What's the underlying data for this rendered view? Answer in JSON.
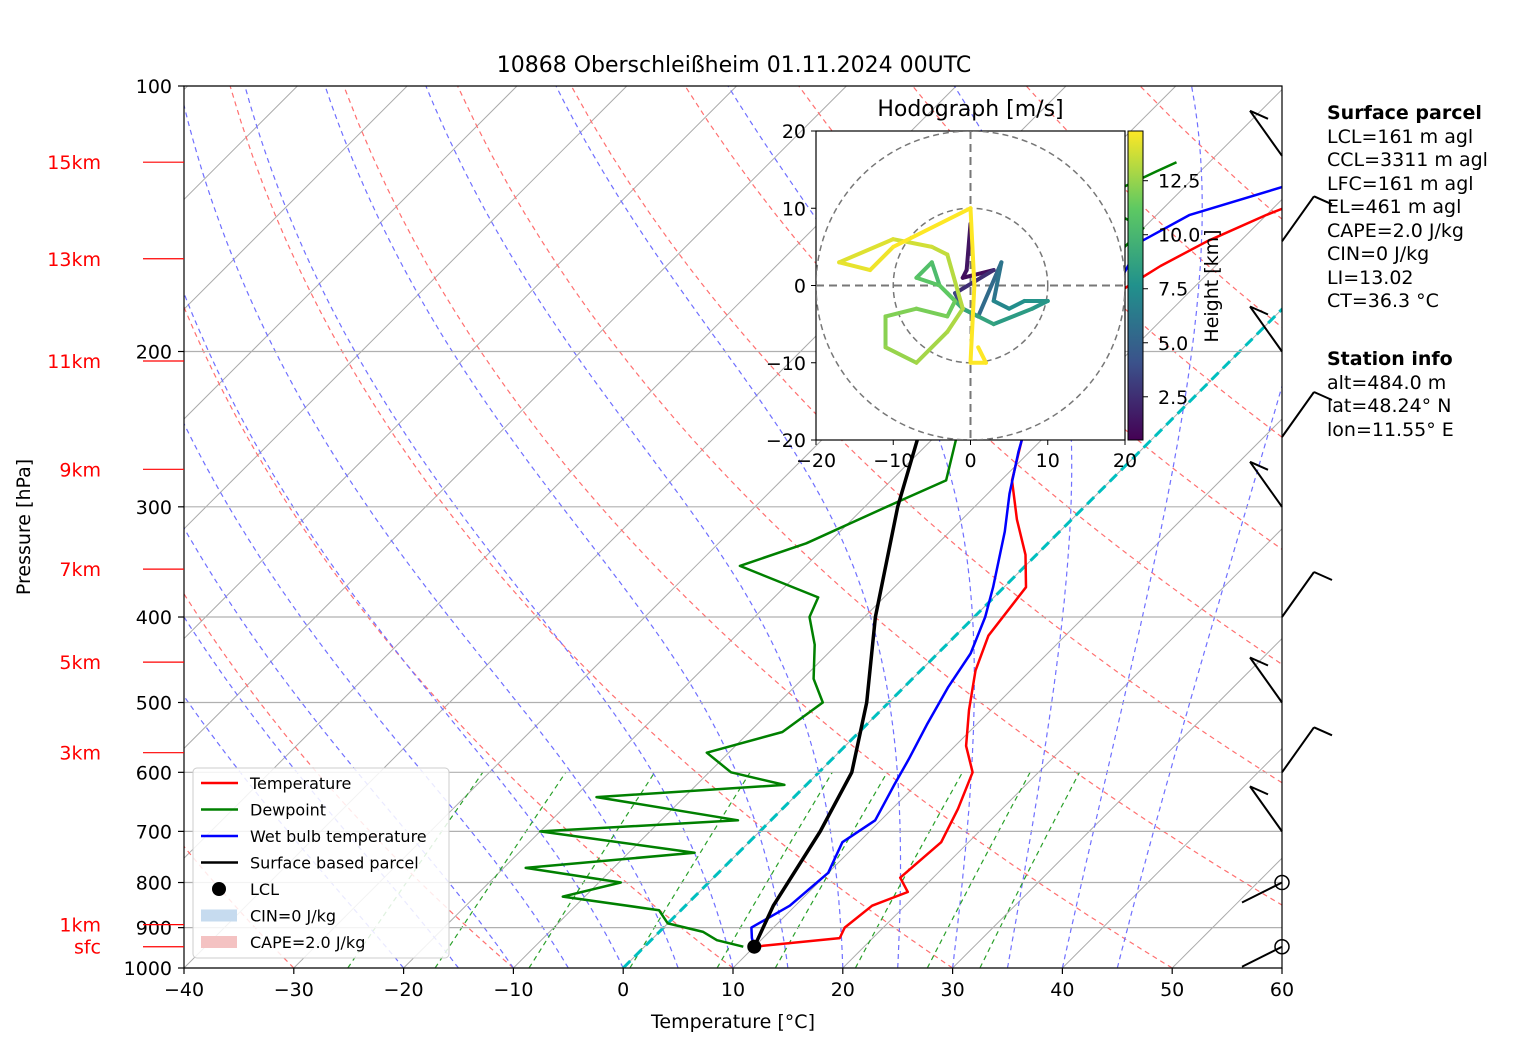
{
  "title": "10868 Oberschleißheim 01.11.2024 00UTC",
  "chart_data": {
    "type": "line",
    "title": "10868 Oberschleißheim 01.11.2024 00UTC",
    "xlabel": "Temperature [°C]",
    "ylabel": "Pressure [hPa]",
    "xlim": [
      -40,
      60
    ],
    "ylim": [
      1000,
      100
    ],
    "y_scale": "log",
    "x_ticks": [
      "−40",
      "−30",
      "−20",
      "−10",
      "0",
      "10",
      "20",
      "30",
      "40",
      "50",
      "60"
    ],
    "y_ticks": [
      "100",
      "200",
      "300",
      "400",
      "500",
      "600",
      "700",
      "800",
      "900",
      "1000"
    ],
    "height_labels": [
      "15km",
      "13km",
      "11km",
      "9km",
      "7km",
      "5km",
      "3km",
      "1km",
      "sfc"
    ],
    "height_label_pressures": [
      122,
      157,
      205,
      272,
      353,
      450,
      570,
      893,
      946
    ],
    "grid": true,
    "legend_position": "lower-left",
    "legend": [
      "Temperature",
      "Dewpoint",
      "Wet bulb temperature",
      "Surface based parcel",
      "LCL",
      "CIN=0 J/kg",
      "CAPE=2.0 J/kg"
    ],
    "series": [
      {
        "name": "Temperature",
        "color": "#ff0000",
        "points": [
          [
            10,
            946
          ],
          [
            17,
            925
          ],
          [
            16.5,
            900
          ],
          [
            17,
            850
          ],
          [
            19,
            820
          ],
          [
            17,
            790
          ],
          [
            17.5,
            720
          ],
          [
            16,
            660
          ],
          [
            14,
            600
          ],
          [
            11,
            560
          ],
          [
            8,
            510
          ],
          [
            5,
            460
          ],
          [
            3,
            420
          ],
          [
            2,
            370
          ],
          [
            -1,
            340
          ],
          [
            -5,
            310
          ],
          [
            -9,
            280
          ],
          [
            -12,
            250
          ],
          [
            -14,
            230
          ],
          [
            -16,
            210
          ],
          [
            -17,
            200
          ],
          [
            -17.5,
            180
          ],
          [
            -15,
            160
          ],
          [
            -13,
            150
          ],
          [
            -10,
            140
          ],
          [
            -6,
            130
          ],
          [
            -3,
            123
          ]
        ]
      },
      {
        "name": "Dewpoint",
        "color": "#008000",
        "points": [
          [
            9,
            946
          ],
          [
            6,
            930
          ],
          [
            4,
            910
          ],
          [
            0,
            890
          ],
          [
            -2,
            860
          ],
          [
            -12,
            830
          ],
          [
            -8,
            800
          ],
          [
            -18,
            770
          ],
          [
            -4,
            740
          ],
          [
            -20,
            700
          ],
          [
            -3,
            680
          ],
          [
            -18,
            640
          ],
          [
            -2,
            620
          ],
          [
            -8,
            600
          ],
          [
            -12,
            570
          ],
          [
            -7,
            540
          ],
          [
            -6,
            500
          ],
          [
            -9,
            470
          ],
          [
            -12,
            430
          ],
          [
            -15,
            400
          ],
          [
            -16,
            380
          ],
          [
            -26,
            350
          ],
          [
            -22,
            330
          ],
          [
            -18,
            300
          ],
          [
            -15,
            280
          ],
          [
            -18,
            250
          ],
          [
            -21,
            230
          ],
          [
            -24,
            210
          ],
          [
            -26,
            195
          ],
          [
            -25,
            180
          ],
          [
            -24,
            170
          ],
          [
            -20,
            155
          ],
          [
            -20,
            145
          ],
          [
            -27,
            135
          ],
          [
            -24,
            125
          ],
          [
            -23,
            122
          ]
        ]
      },
      {
        "name": "Wet bulb temperature",
        "color": "#0000ff",
        "points": [
          [
            10,
            946
          ],
          [
            9,
            925
          ],
          [
            8,
            900
          ],
          [
            9.5,
            850
          ],
          [
            10,
            780
          ],
          [
            8.5,
            720
          ],
          [
            9.5,
            680
          ],
          [
            8,
            620
          ],
          [
            7,
            580
          ],
          [
            5.5,
            530
          ],
          [
            4,
            480
          ],
          [
            3,
            440
          ],
          [
            1,
            400
          ],
          [
            -1,
            370
          ],
          [
            -5,
            320
          ],
          [
            -8,
            290
          ],
          [
            -11,
            260
          ],
          [
            -13,
            240
          ],
          [
            -16,
            210
          ],
          [
            -18,
            190
          ],
          [
            -19,
            180
          ],
          [
            -17,
            170
          ],
          [
            -19,
            150
          ],
          [
            -17,
            140
          ],
          [
            -11,
            130
          ],
          [
            -3,
            123
          ]
        ]
      },
      {
        "name": "Surface based parcel",
        "color": "#000000",
        "points": [
          [
            10,
            946
          ],
          [
            8,
            850
          ],
          [
            5.5,
            700
          ],
          [
            3,
            600
          ],
          [
            -2,
            500
          ],
          [
            -9,
            400
          ],
          [
            -17,
            300
          ],
          [
            -27,
            200
          ],
          [
            -33,
            160
          ],
          [
            -40,
            139
          ]
        ]
      }
    ],
    "lcl": {
      "temperature": 10,
      "pressure": 946
    },
    "wind_barbs_pressures": [
      946,
      800,
      700,
      600,
      500,
      400,
      300,
      250,
      200,
      150,
      120
    ],
    "hodograph": {
      "title": "Hodograph [m/s]",
      "xlim": [
        -20,
        20
      ],
      "ylim": [
        -20,
        20
      ],
      "ticks": [
        "−20",
        "−10",
        "0",
        "10",
        "20"
      ],
      "rings": [
        10,
        20
      ],
      "colorbar_label": "Height [km]",
      "colorbar_ticks": [
        "2.5",
        "5.0",
        "7.5",
        "10.0",
        "12.5"
      ],
      "colorbar_range": [
        0.5,
        14.8
      ],
      "trace": [
        [
          0,
          8,
          1.6
        ],
        [
          -0.5,
          2,
          1.4
        ],
        [
          -1,
          1,
          1.2
        ],
        [
          3,
          2,
          1.0
        ],
        [
          -2,
          -1,
          2.5
        ],
        [
          -1,
          -3,
          3.5
        ],
        [
          1,
          -4,
          4.5
        ],
        [
          4,
          3,
          5.5
        ],
        [
          3,
          -2,
          6.0
        ],
        [
          5,
          -3,
          7.0
        ],
        [
          7,
          -2,
          7.5
        ],
        [
          10,
          -2,
          7.8
        ],
        [
          8,
          -3,
          8.0
        ],
        [
          3,
          -5,
          8.3
        ],
        [
          -1,
          -3,
          8.8
        ],
        [
          -3,
          -1,
          9.5
        ],
        [
          -4,
          0,
          10.0
        ],
        [
          -5,
          3,
          10.3
        ],
        [
          -7,
          1,
          10.6
        ],
        [
          -4,
          0,
          11.0
        ],
        [
          -2,
          -2,
          11.2
        ],
        [
          -3,
          -4,
          11.5
        ],
        [
          -7,
          -3,
          11.8
        ],
        [
          -11,
          -4,
          12.0
        ],
        [
          -11,
          -8,
          12.2
        ],
        [
          -7,
          -10,
          12.5
        ],
        [
          -3,
          -6,
          12.8
        ],
        [
          -1,
          -3,
          13.0
        ],
        [
          -3,
          4,
          13.2
        ],
        [
          -5,
          5,
          13.5
        ],
        [
          -10,
          6,
          13.8
        ],
        [
          -17,
          3,
          14.1
        ],
        [
          -13,
          2,
          14.3
        ],
        [
          -10,
          5,
          14.5
        ],
        [
          0,
          10,
          14.8
        ],
        [
          0.5,
          0,
          14.8
        ],
        [
          0,
          -10,
          14.8
        ],
        [
          2,
          -10,
          14.8
        ],
        [
          1,
          -8,
          14.8
        ]
      ]
    }
  },
  "surface_parcel": {
    "header": "Surface parcel",
    "lines": [
      "LCL=161 m agl",
      "CCL=3311 m agl",
      "LFC=161 m agl",
      "EL=461 m agl",
      "CAPE=2.0 J/kg",
      "CIN=0 J/kg",
      "LI=13.02",
      "CT=36.3 °C"
    ]
  },
  "station_info": {
    "header": "Station info",
    "lines": [
      "alt=484.0 m",
      "lat=48.24° N",
      "lon=11.55° E"
    ]
  },
  "colors": {
    "temperature": "#ff0000",
    "dewpoint": "#008000",
    "wet_bulb": "#0000ff",
    "parcel": "#000000",
    "dry_adiabat": "#ff7070",
    "moist_adiabat": "#7070ff",
    "mixing_ratio": "#2aa02a",
    "freezing_line": "#00bfbf",
    "height_labels": "#ff0000"
  }
}
